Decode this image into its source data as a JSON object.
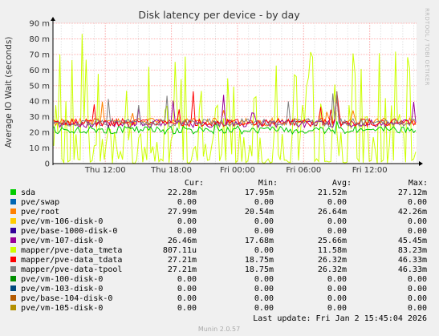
{
  "chart_data": {
    "type": "line",
    "title": "Disk latency per device - by day",
    "ylabel": "Average IO Wait (seconds)",
    "side_label": "RRDTOOL / TOBI OETIKER",
    "ylim": [
      0,
      90
    ],
    "yticks": [
      "0",
      "10 m",
      "20 m",
      "30 m",
      "40 m",
      "50 m",
      "60 m",
      "70 m",
      "80 m",
      "90 m"
    ],
    "xticks": [
      {
        "label": "Thu 12:00",
        "t": 8
      },
      {
        "label": "Thu 18:00",
        "t": 14
      },
      {
        "label": "Fri 00:00",
        "t": 20
      },
      {
        "label": "Fri 06:00",
        "t": 26
      },
      {
        "label": "Fri 12:00",
        "t": 32
      }
    ],
    "xrange": [
      3.25,
      36.25
    ],
    "grid": true,
    "legend_headers": {
      "cur": "Cur:",
      "min": "Min:",
      "avg": "Avg:",
      "max": "Max:"
    },
    "series": [
      {
        "name": "sda",
        "color": "#00cc00",
        "cur": "22.28m",
        "min": "17.95m",
        "avg": "21.52m",
        "max": "27.12m"
      },
      {
        "name": "pve/swap",
        "color": "#0066b3",
        "cur": "0.00",
        "min": "0.00",
        "avg": "0.00",
        "max": "0.00"
      },
      {
        "name": "pve/root",
        "color": "#ff8000",
        "cur": "27.99m",
        "min": "20.54m",
        "avg": "26.64m",
        "max": "42.26m"
      },
      {
        "name": "pve/vm-106-disk-0",
        "color": "#ffcc00",
        "cur": "0.00",
        "min": "0.00",
        "avg": "0.00",
        "max": "0.00"
      },
      {
        "name": "pve/base-1000-disk-0",
        "color": "#330099",
        "cur": "0.00",
        "min": "0.00",
        "avg": "0.00",
        "max": "0.00"
      },
      {
        "name": "pve/vm-107-disk-0",
        "color": "#990099",
        "cur": "26.46m",
        "min": "17.68m",
        "avg": "25.66m",
        "max": "45.45m"
      },
      {
        "name": "mapper/pve-data_tmeta",
        "color": "#ccff00",
        "cur": "807.11u",
        "min": "0.00",
        "avg": "11.58m",
        "max": "83.23m"
      },
      {
        "name": "mapper/pve-data_tdata",
        "color": "#ff0000",
        "cur": "27.21m",
        "min": "18.75m",
        "avg": "26.32m",
        "max": "46.33m"
      },
      {
        "name": "mapper/pve-data-tpool",
        "color": "#808080",
        "cur": "27.21m",
        "min": "18.75m",
        "avg": "26.32m",
        "max": "46.33m"
      },
      {
        "name": "pve/vm-100-disk-0",
        "color": "#008f00",
        "cur": "0.00",
        "min": "0.00",
        "avg": "0.00",
        "max": "0.00"
      },
      {
        "name": "pve/vm-103-disk-0",
        "color": "#00487d",
        "cur": "0.00",
        "min": "0.00",
        "avg": "0.00",
        "max": "0.00"
      },
      {
        "name": "pve/base-104-disk-0",
        "color": "#b35a00",
        "cur": "0.00",
        "min": "0.00",
        "avg": "0.00",
        "max": "0.00"
      },
      {
        "name": "pve/vm-105-disk-0",
        "color": "#b38f00",
        "cur": "0.00",
        "min": "0.00",
        "avg": "0.00",
        "max": "0.00"
      }
    ],
    "last_update": "Last update: Fri Jan  2 15:45:04 2026",
    "footer": "Munin 2.0.57"
  }
}
